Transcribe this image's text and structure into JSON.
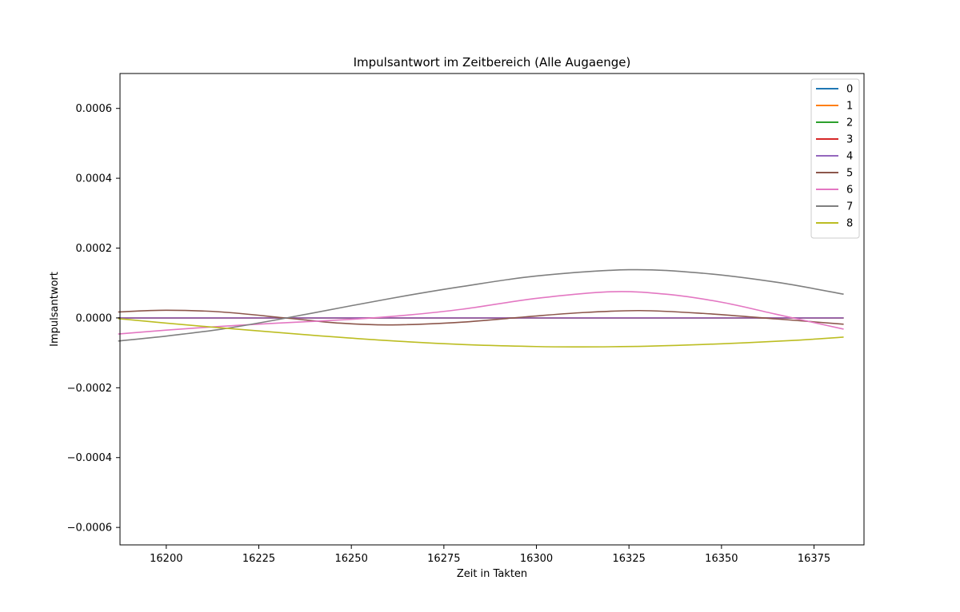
{
  "chart_data": {
    "type": "line",
    "title": "Impulsantwort im Zeitbereich (Alle Augaenge)",
    "xlabel": "Zeit in Takten",
    "ylabel": "Impulsantwort",
    "xlim": [
      16187.5,
      16388.5
    ],
    "ylim": [
      -0.00065,
      0.0007
    ],
    "xticks": [
      16200,
      16225,
      16250,
      16275,
      16300,
      16325,
      16350,
      16375
    ],
    "xtick_labels": [
      "16200",
      "16225",
      "16250",
      "16275",
      "16300",
      "16325",
      "16350",
      "16375"
    ],
    "yticks": [
      -0.0006,
      -0.0004,
      -0.0002,
      0.0,
      0.0002,
      0.0004,
      0.0006
    ],
    "ytick_labels": [
      "−0.0006",
      "−0.0004",
      "−0.0002",
      "0.0000",
      "0.0002",
      "0.0004",
      "0.0006"
    ],
    "grid": false,
    "legend_position": "top-right",
    "series": [
      {
        "name": "0",
        "color": "#1f77b4",
        "x": [
          16187,
          16383
        ],
        "y": [
          0.0,
          0.0
        ]
      },
      {
        "name": "1",
        "color": "#ff7f0e",
        "x": [
          16187,
          16383
        ],
        "y": [
          0.0,
          0.0
        ]
      },
      {
        "name": "2",
        "color": "#2ca02c",
        "x": [
          16187,
          16383
        ],
        "y": [
          0.0,
          0.0
        ]
      },
      {
        "name": "3",
        "color": "#d62728",
        "x": [
          16187,
          16383
        ],
        "y": [
          0.0,
          0.0
        ]
      },
      {
        "name": "4",
        "color": "#9467bd",
        "x": [
          16187,
          16383
        ],
        "y": [
          0.0,
          0.0
        ]
      },
      {
        "name": "5",
        "color": "#8c564b",
        "x": [
          16187,
          16200,
          16215,
          16233,
          16247,
          16261,
          16280,
          16297,
          16312,
          16328,
          16345,
          16365,
          16383
        ],
        "y": [
          1.7e-05,
          2.2e-05,
          1.7e-05,
          -1e-06,
          -1.5e-05,
          -2e-05,
          -1.2e-05,
          3e-06,
          1.5e-05,
          2.1e-05,
          1.3e-05,
          -3e-06,
          -1.8e-05
        ]
      },
      {
        "name": "6",
        "color": "#e377c2",
        "x": [
          16187,
          16200,
          16215,
          16230,
          16250,
          16265,
          16280,
          16300,
          16320,
          16335,
          16350,
          16365,
          16383
        ],
        "y": [
          -4.6e-05,
          -3.5e-05,
          -2.4e-05,
          -1.5e-05,
          -4e-06,
          8e-06,
          2.5e-05,
          5.6e-05,
          7.5e-05,
          6.8e-05,
          4.5e-05,
          1e-05,
          -3.2e-05
        ]
      },
      {
        "name": "7",
        "color": "#7f7f7f",
        "x": [
          16187,
          16200,
          16215,
          16230,
          16250,
          16265,
          16280,
          16300,
          16325,
          16345,
          16365,
          16383
        ],
        "y": [
          -6.6e-05,
          -5.2e-05,
          -3.2e-05,
          -5e-06,
          3.5e-05,
          6.4e-05,
          9e-05,
          0.00012,
          0.000138,
          0.000128,
          0.000102,
          6.8e-05
        ]
      },
      {
        "name": "8",
        "color": "#bcbd22",
        "x": [
          16187,
          16200,
          16220,
          16240,
          16260,
          16280,
          16300,
          16312,
          16330,
          16350,
          16370,
          16383
        ],
        "y": [
          -2e-06,
          -1.5e-05,
          -3.3e-05,
          -5e-05,
          -6.5e-05,
          -7.6e-05,
          -8.2e-05,
          -8.3e-05,
          -8.1e-05,
          -7.4e-05,
          -6.4e-05,
          -5.5e-05
        ]
      }
    ]
  }
}
